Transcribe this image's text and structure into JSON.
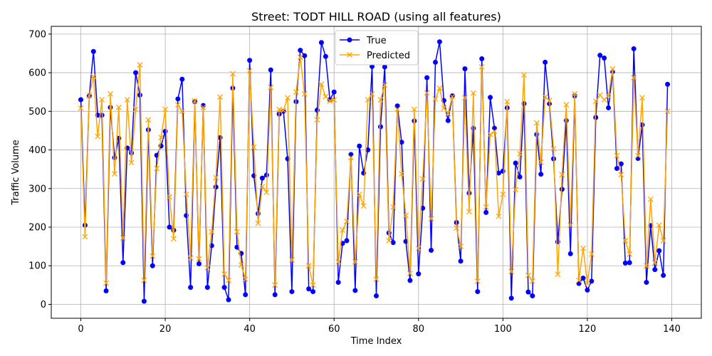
{
  "chart_data": {
    "type": "line",
    "title": "Street: TODT HILL ROAD (using all features)",
    "xlabel": "Time Index",
    "ylabel": "Traffic Volume",
    "xlim": [
      -7,
      147
    ],
    "ylim": [
      -36,
      720
    ],
    "xticks": [
      0,
      20,
      40,
      60,
      80,
      100,
      120,
      140
    ],
    "yticks": [
      0,
      100,
      200,
      300,
      400,
      500,
      600,
      700
    ],
    "grid": true,
    "legend_position": "top-center",
    "colors": {
      "true": "#0000ff",
      "predicted": "#ffa500"
    },
    "series": [
      {
        "name": "True",
        "marker": "o",
        "values": [
          530,
          205,
          540,
          655,
          490,
          490,
          35,
          510,
          380,
          430,
          108,
          405,
          392,
          600,
          542,
          8,
          452,
          100,
          386,
          410,
          448,
          200,
          192,
          532,
          583,
          230,
          44,
          525,
          105,
          515,
          44,
          152,
          304,
          432,
          44,
          12,
          560,
          148,
          132,
          25,
          632,
          333,
          235,
          327,
          335,
          607,
          25,
          493,
          500,
          377,
          33,
          525,
          658,
          644,
          40,
          33,
          503,
          678,
          642,
          530,
          550,
          57,
          158,
          165,
          388,
          36,
          410,
          340,
          400,
          616,
          22,
          460,
          615,
          185,
          160,
          514,
          420,
          163,
          62,
          475,
          79,
          249,
          587,
          140,
          627,
          680,
          528,
          476,
          540,
          212,
          112,
          610,
          288,
          456,
          33,
          636,
          238,
          536,
          456,
          340,
          345,
          509,
          16,
          366,
          330,
          520,
          32,
          22,
          440,
          337,
          627,
          520,
          377,
          162,
          298,
          476,
          131,
          540,
          54,
          68,
          37,
          60,
          484,
          645,
          638,
          509,
          603,
          352,
          364,
          107,
          108,
          662,
          378,
          465,
          57,
          204,
          90,
          139,
          75,
          570
        ]
      },
      {
        "name": "Predicted",
        "marker": "x",
        "values": [
          508,
          175,
          540,
          590,
          435,
          530,
          55,
          545,
          338,
          510,
          172,
          530,
          367,
          505,
          620,
          62,
          478,
          125,
          352,
          432,
          505,
          278,
          170,
          517,
          500,
          285,
          120,
          527,
          118,
          510,
          95,
          188,
          328,
          537,
          78,
          62,
          597,
          188,
          102,
          65,
          605,
          407,
          210,
          305,
          290,
          562,
          50,
          505,
          502,
          535,
          115,
          550,
          640,
          545,
          100,
          50,
          478,
          570,
          538,
          527,
          530,
          110,
          192,
          215,
          380,
          110,
          285,
          255,
          530,
          545,
          65,
          530,
          568,
          165,
          252,
          505,
          338,
          230,
          80,
          505,
          145,
          325,
          548,
          222,
          532,
          560,
          508,
          495,
          538,
          198,
          150,
          535,
          240,
          547,
          60,
          615,
          252,
          440,
          448,
          228,
          285,
          525,
          85,
          297,
          390,
          594,
          75,
          60,
          470,
          368,
          537,
          528,
          403,
          78,
          336,
          517,
          205,
          545,
          62,
          145,
          55,
          130,
          526,
          542,
          530,
          540,
          610,
          385,
          336,
          165,
          130,
          587,
          385,
          535,
          100,
          272,
          108,
          205,
          165,
          500
        ]
      }
    ]
  }
}
